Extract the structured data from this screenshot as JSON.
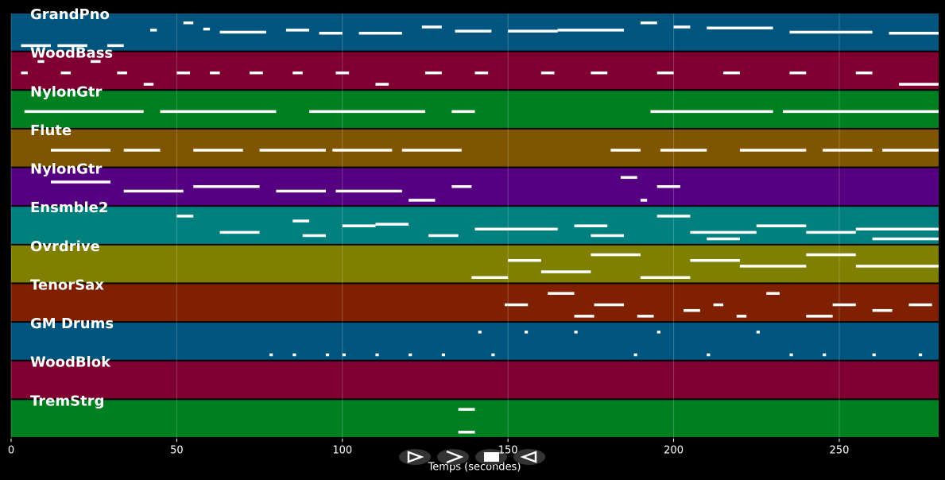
{
  "chart_data": {
    "type": "pianoroll",
    "x_label": "Temps (secondes)",
    "xlim": [
      0,
      280
    ],
    "xticks": [
      0,
      50,
      100,
      150,
      200,
      250
    ],
    "grid": true,
    "tracks": [
      {
        "name": "GrandPno",
        "color": "#00557f",
        "notes": [
          [
            3,
            12,
            40
          ],
          [
            14,
            23,
            40
          ],
          [
            29,
            34,
            40
          ],
          [
            42,
            44,
            55
          ],
          [
            52,
            55,
            62
          ],
          [
            58,
            60,
            56
          ],
          [
            63,
            77,
            53
          ],
          [
            83,
            90,
            55
          ],
          [
            93,
            100,
            52
          ],
          [
            105,
            118,
            52
          ],
          [
            124,
            130,
            58
          ],
          [
            134,
            145,
            54
          ],
          [
            150,
            165,
            54
          ],
          [
            165,
            185,
            55
          ],
          [
            190,
            195,
            62
          ],
          [
            200,
            205,
            58
          ],
          [
            210,
            230,
            57
          ],
          [
            235,
            260,
            53
          ],
          [
            265,
            280,
            52
          ]
        ]
      },
      {
        "name": "WoodBass",
        "color": "#7f0030",
        "notes": [
          [
            3,
            5,
            50
          ],
          [
            8,
            10,
            51
          ],
          [
            15,
            18,
            50
          ],
          [
            24,
            27,
            51
          ],
          [
            32,
            35,
            50
          ],
          [
            40,
            43,
            49
          ],
          [
            50,
            54,
            50
          ],
          [
            60,
            63,
            50
          ],
          [
            72,
            76,
            50
          ],
          [
            85,
            88,
            50
          ],
          [
            98,
            102,
            50
          ],
          [
            110,
            114,
            49
          ],
          [
            125,
            130,
            50
          ],
          [
            140,
            144,
            50
          ],
          [
            160,
            164,
            50
          ],
          [
            175,
            180,
            50
          ],
          [
            195,
            200,
            50
          ],
          [
            215,
            220,
            50
          ],
          [
            235,
            240,
            50
          ],
          [
            255,
            260,
            50
          ],
          [
            268,
            280,
            49
          ]
        ]
      },
      {
        "name": "NylonGtr",
        "color": "#007f20",
        "notes": [
          [
            4,
            40,
            50
          ],
          [
            45,
            80,
            50
          ],
          [
            90,
            125,
            50
          ],
          [
            133,
            140,
            50
          ],
          [
            193,
            230,
            50
          ],
          [
            233,
            280,
            50
          ]
        ]
      },
      {
        "name": "Flute",
        "color": "#7f5500",
        "notes": [
          [
            12,
            30,
            50
          ],
          [
            34,
            45,
            50
          ],
          [
            55,
            70,
            50
          ],
          [
            75,
            95,
            50
          ],
          [
            97,
            115,
            50
          ],
          [
            118,
            136,
            50
          ],
          [
            181,
            190,
            50
          ],
          [
            196,
            210,
            50
          ],
          [
            220,
            240,
            50
          ],
          [
            245,
            260,
            50
          ],
          [
            263,
            280,
            50
          ]
        ]
      },
      {
        "name": "NylonGtr",
        "color": "#550080",
        "notes": [
          [
            12,
            30,
            52
          ],
          [
            34,
            52,
            50
          ],
          [
            55,
            75,
            51
          ],
          [
            80,
            95,
            50
          ],
          [
            98,
            118,
            50
          ],
          [
            120,
            128,
            48
          ],
          [
            133,
            139,
            51
          ],
          [
            184,
            189,
            53
          ],
          [
            190,
            192,
            48
          ],
          [
            195,
            202,
            51
          ]
        ]
      },
      {
        "name": "Ensmble2",
        "color": "#007f7f",
        "notes": [
          [
            50,
            55,
            60
          ],
          [
            63,
            75,
            50
          ],
          [
            85,
            90,
            57
          ],
          [
            88,
            95,
            48
          ],
          [
            100,
            110,
            54
          ],
          [
            110,
            120,
            55
          ],
          [
            126,
            135,
            48
          ],
          [
            140,
            165,
            52
          ],
          [
            170,
            180,
            54
          ],
          [
            175,
            185,
            48
          ],
          [
            195,
            205,
            60
          ],
          [
            205,
            225,
            50
          ],
          [
            210,
            220,
            46
          ],
          [
            225,
            240,
            54
          ],
          [
            240,
            255,
            50
          ],
          [
            255,
            280,
            52
          ],
          [
            260,
            280,
            46
          ]
        ]
      },
      {
        "name": "Ovrdrive",
        "color": "#7f7f00",
        "notes": [
          [
            139,
            150,
            50
          ],
          [
            150,
            160,
            53
          ],
          [
            160,
            175,
            51
          ],
          [
            175,
            190,
            54
          ],
          [
            190,
            205,
            50
          ],
          [
            205,
            220,
            53
          ],
          [
            220,
            240,
            52
          ],
          [
            240,
            255,
            54
          ],
          [
            255,
            280,
            52
          ]
        ]
      },
      {
        "name": "TenorSax",
        "color": "#7f2000",
        "notes": [
          [
            149,
            156,
            52
          ],
          [
            162,
            170,
            54
          ],
          [
            170,
            176,
            50
          ],
          [
            176,
            185,
            52
          ],
          [
            189,
            194,
            50
          ],
          [
            203,
            208,
            51
          ],
          [
            212,
            215,
            52
          ],
          [
            219,
            222,
            50
          ],
          [
            228,
            232,
            54
          ],
          [
            240,
            248,
            50
          ],
          [
            248,
            255,
            52
          ],
          [
            260,
            266,
            51
          ],
          [
            271,
            278,
            52
          ]
        ]
      },
      {
        "name": "GM Drums",
        "color": "#00557f",
        "notes": [
          [
            78,
            79,
            40
          ],
          [
            85,
            86,
            40
          ],
          [
            95,
            96,
            40
          ],
          [
            100,
            101,
            40
          ],
          [
            110,
            111,
            40
          ],
          [
            120,
            121,
            40
          ],
          [
            130,
            131,
            40
          ],
          [
            141,
            142,
            52
          ],
          [
            145,
            146,
            40
          ],
          [
            155,
            156,
            52
          ],
          [
            170,
            171,
            52
          ],
          [
            188,
            189,
            40
          ],
          [
            195,
            196,
            52
          ],
          [
            210,
            211,
            40
          ],
          [
            225,
            226,
            52
          ],
          [
            235,
            236,
            40
          ],
          [
            245,
            246,
            40
          ],
          [
            260,
            261,
            40
          ],
          [
            274,
            275,
            40
          ]
        ]
      },
      {
        "name": "WoodBlok",
        "color": "#7f0030",
        "notes": []
      },
      {
        "name": "TremStrg",
        "color": "#007f20",
        "notes": [
          [
            135,
            140,
            61
          ],
          [
            135,
            140,
            60
          ]
        ]
      }
    ]
  }
}
